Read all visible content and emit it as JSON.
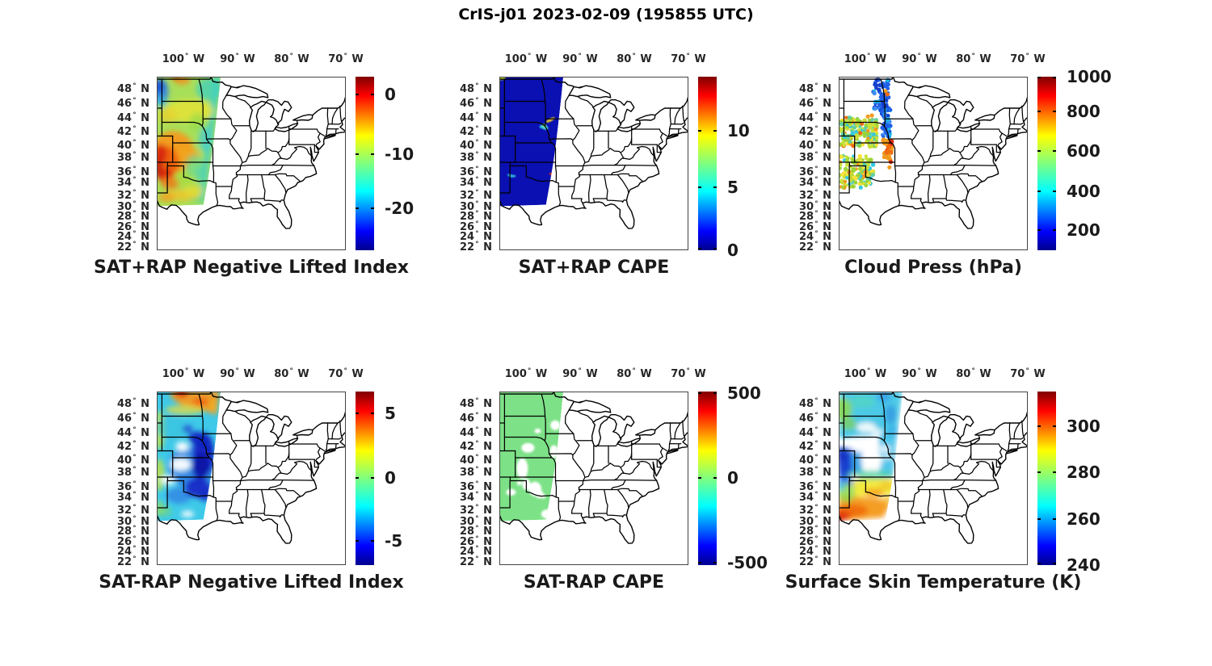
{
  "figure_title": "CrIS-j01 2023-02-09 (195855 UTC)",
  "axes": {
    "lon_tick_labels": [
      "100",
      "90",
      "80",
      "70"
    ],
    "lon_suffix": "W",
    "lat_tick_labels": [
      "48",
      "46",
      "44",
      "42",
      "40",
      "38",
      "36",
      "34",
      "32",
      "30",
      "28",
      "26",
      "24",
      "22"
    ],
    "lat_suffix": "N",
    "degree_symbol": "°"
  },
  "panels": [
    {
      "title": "SAT+RAP Negative Lifted Index",
      "colorbar_ticks": [
        "0",
        "-10",
        "-20"
      ]
    },
    {
      "title": "SAT+RAP CAPE",
      "colorbar_ticks": [
        "10",
        "5",
        "0"
      ]
    },
    {
      "title": "Cloud Press (hPa)",
      "colorbar_ticks": [
        "1000",
        "800",
        "600",
        "400",
        "200"
      ]
    },
    {
      "title": "SAT-RAP Negative Lifted Index",
      "colorbar_ticks": [
        "5",
        "0",
        "-5"
      ]
    },
    {
      "title": "SAT-RAP CAPE",
      "colorbar_ticks": [
        "500",
        "0",
        "-500"
      ]
    },
    {
      "title": "Surface Skin Temperature (K)",
      "colorbar_ticks": [
        "300",
        "280",
        "260",
        "240"
      ]
    }
  ],
  "colors": {
    "colormap": "jet",
    "jet_top": "#7f0000",
    "jet_bottom": "#00008f",
    "map_line": "#000000",
    "frame": "#444444",
    "sat_plus_cape_swath": "#0a10b2",
    "sat_minus_cape_swath": "#7de187"
  },
  "chart_data": [
    {
      "type": "heatmap",
      "title": "SAT+RAP Negative Lifted Index",
      "map_extent": {
        "lon": [
          -105,
          -70
        ],
        "lat": [
          21,
          49.4
        ]
      },
      "lon_ticks_deg_w": [
        100,
        90,
        80,
        70
      ],
      "lat_ticks_deg_n": [
        48,
        46,
        44,
        42,
        40,
        38,
        36,
        34,
        32,
        30,
        28,
        26,
        24,
        22
      ],
      "swath_lon_range": [
        -105,
        -93
      ],
      "colormap": "jet",
      "colorbar_tick_values": [
        0,
        -10,
        -20
      ],
      "colorbar_range_estimate": [
        3,
        -26
      ],
      "pattern": "Satellite swath over the Great Plains; mostly -6 to -12 (yellow/green); near-0 maxima (orange-red) over eastern CO, NM and the TX/OK panhandles; -15 to -22 (cyan-blue) in the NW corner and along the eastern swath edge"
    },
    {
      "type": "heatmap",
      "title": "SAT+RAP CAPE",
      "map_extent": {
        "lon": [
          -105,
          -70
        ],
        "lat": [
          21,
          49.4
        ]
      },
      "swath_lon_range": [
        -105,
        -93
      ],
      "colormap": "jet",
      "colorbar_tick_values": [
        10,
        5,
        0
      ],
      "colorbar_range_estimate": [
        14,
        0
      ],
      "pattern": "Swath nearly uniform at 0 (dark navy); isolated specks of 3-12 near 42-43N / 96-95W, a ~13 spot near 35N / 95W, cyan specks near 35N / 103W, and a yellow-green spot at the NW swath corner"
    },
    {
      "type": "scatter",
      "title": "Cloud Press (hPa)",
      "map_extent": {
        "lon": [
          -105,
          -70
        ],
        "lat": [
          21,
          49.4
        ]
      },
      "colormap": "jet",
      "colorbar_tick_values": [
        1000,
        800,
        600,
        400,
        200
      ],
      "colorbar_range_estimate": [
        1050,
        120
      ],
      "pattern": "Patchy cloud-pressure retrievals: 150-350 hPa (blue) cluster over eastern ND/western MN extending south along 96W into NE; 500-700 hPa (green-yellow) fields over CO/NE/KS and NM/TX panhandle; scattered 750-950 hPa (orange-red) points near 95-96W between 37N and 44N"
    },
    {
      "type": "heatmap",
      "title": "SAT-RAP Negative Lifted Index",
      "map_extent": {
        "lon": [
          -105,
          -70
        ],
        "lat": [
          21,
          49.4
        ]
      },
      "swath_lon_range": [
        -105,
        -93
      ],
      "colormap": "jet",
      "colorbar_tick_values": [
        5,
        0,
        -5
      ],
      "colorbar_range_estimate": [
        7,
        -7
      ],
      "pattern": "Differences mostly -1 to -3 (cyan); +3 to +7 (orange-red) band across ND into MN; -5 to -7 (dark blue) blobs over NE/KS/OK/MO; near 0 (yellow-green) along the western swath edge; white data gaps over central NE/KS"
    },
    {
      "type": "heatmap",
      "title": "SAT-RAP CAPE",
      "map_extent": {
        "lon": [
          -105,
          -70
        ],
        "lat": [
          21,
          49.4
        ]
      },
      "swath_lon_range": [
        -105,
        -93
      ],
      "colormap": "jet",
      "colorbar_tick_values": [
        500,
        0,
        -500
      ],
      "colorbar_range_estimate": [
        500,
        -500
      ],
      "pattern": "Difference ~0 everywhere (uniform light green swath) with white data-gap holes over NE, KS, OK and the TX panhandle"
    },
    {
      "type": "heatmap",
      "title": "Surface Skin Temperature (K)",
      "map_extent": {
        "lon": [
          -105,
          -70
        ],
        "lat": [
          21,
          49.4
        ]
      },
      "swath_lon_range": [
        -105,
        -93
      ],
      "colormap": "jet",
      "colorbar_tick_values": [
        300,
        280,
        260,
        240
      ],
      "colorbar_range_estimate": [
        315,
        240
      ],
      "pattern": "250-262 K (cyan) north of ~43N with greener patches near 47N/104W; 245-255 K (blue, darkest) over CO front range; 275-285 K (yellow) over OK and north TX; 290-302 K (orange-red) over central/SW Texas peaking near 30N/104W; white cloudy gaps over central NE and KS"
    }
  ]
}
